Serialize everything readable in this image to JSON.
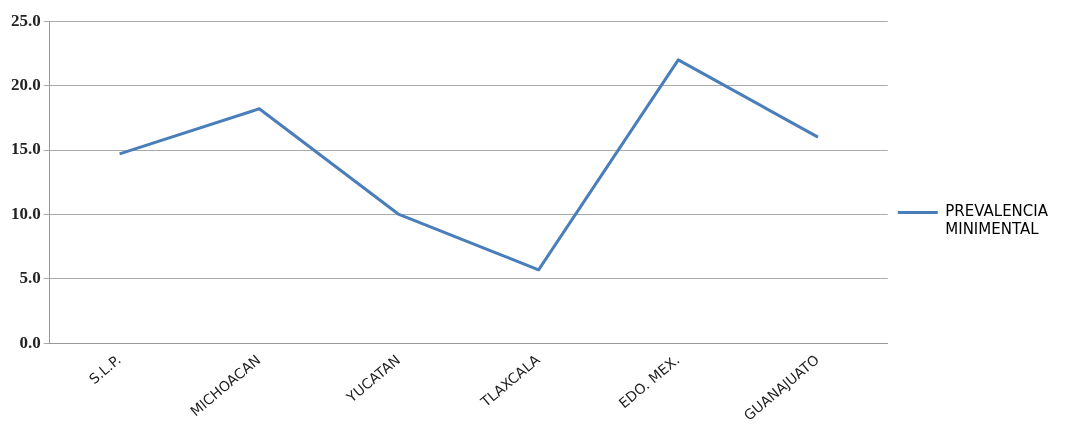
{
  "chart_data": {
    "type": "line",
    "categories": [
      "S.L.P.",
      "MICHOACAN",
      "YUCATAN",
      "TLAXCALA",
      "EDO. MEX.",
      "GUANAJUATO"
    ],
    "series": [
      {
        "name": "PREVALENCIA MINIMENTAL",
        "color": "#4a7ebb",
        "values": [
          14.7,
          18.2,
          10.0,
          5.7,
          22.0,
          16.0
        ]
      }
    ],
    "ylim": [
      0,
      25
    ],
    "yticks": [
      {
        "value": 0,
        "label": "0.0"
      },
      {
        "value": 5,
        "label": "5.0"
      },
      {
        "value": 10,
        "label": "10.0"
      },
      {
        "value": 15,
        "label": "15.0"
      },
      {
        "value": 20,
        "label": "20.0"
      },
      {
        "value": 25,
        "label": "25.0"
      }
    ],
    "grid": "y",
    "legend": "right",
    "marker": "none"
  }
}
